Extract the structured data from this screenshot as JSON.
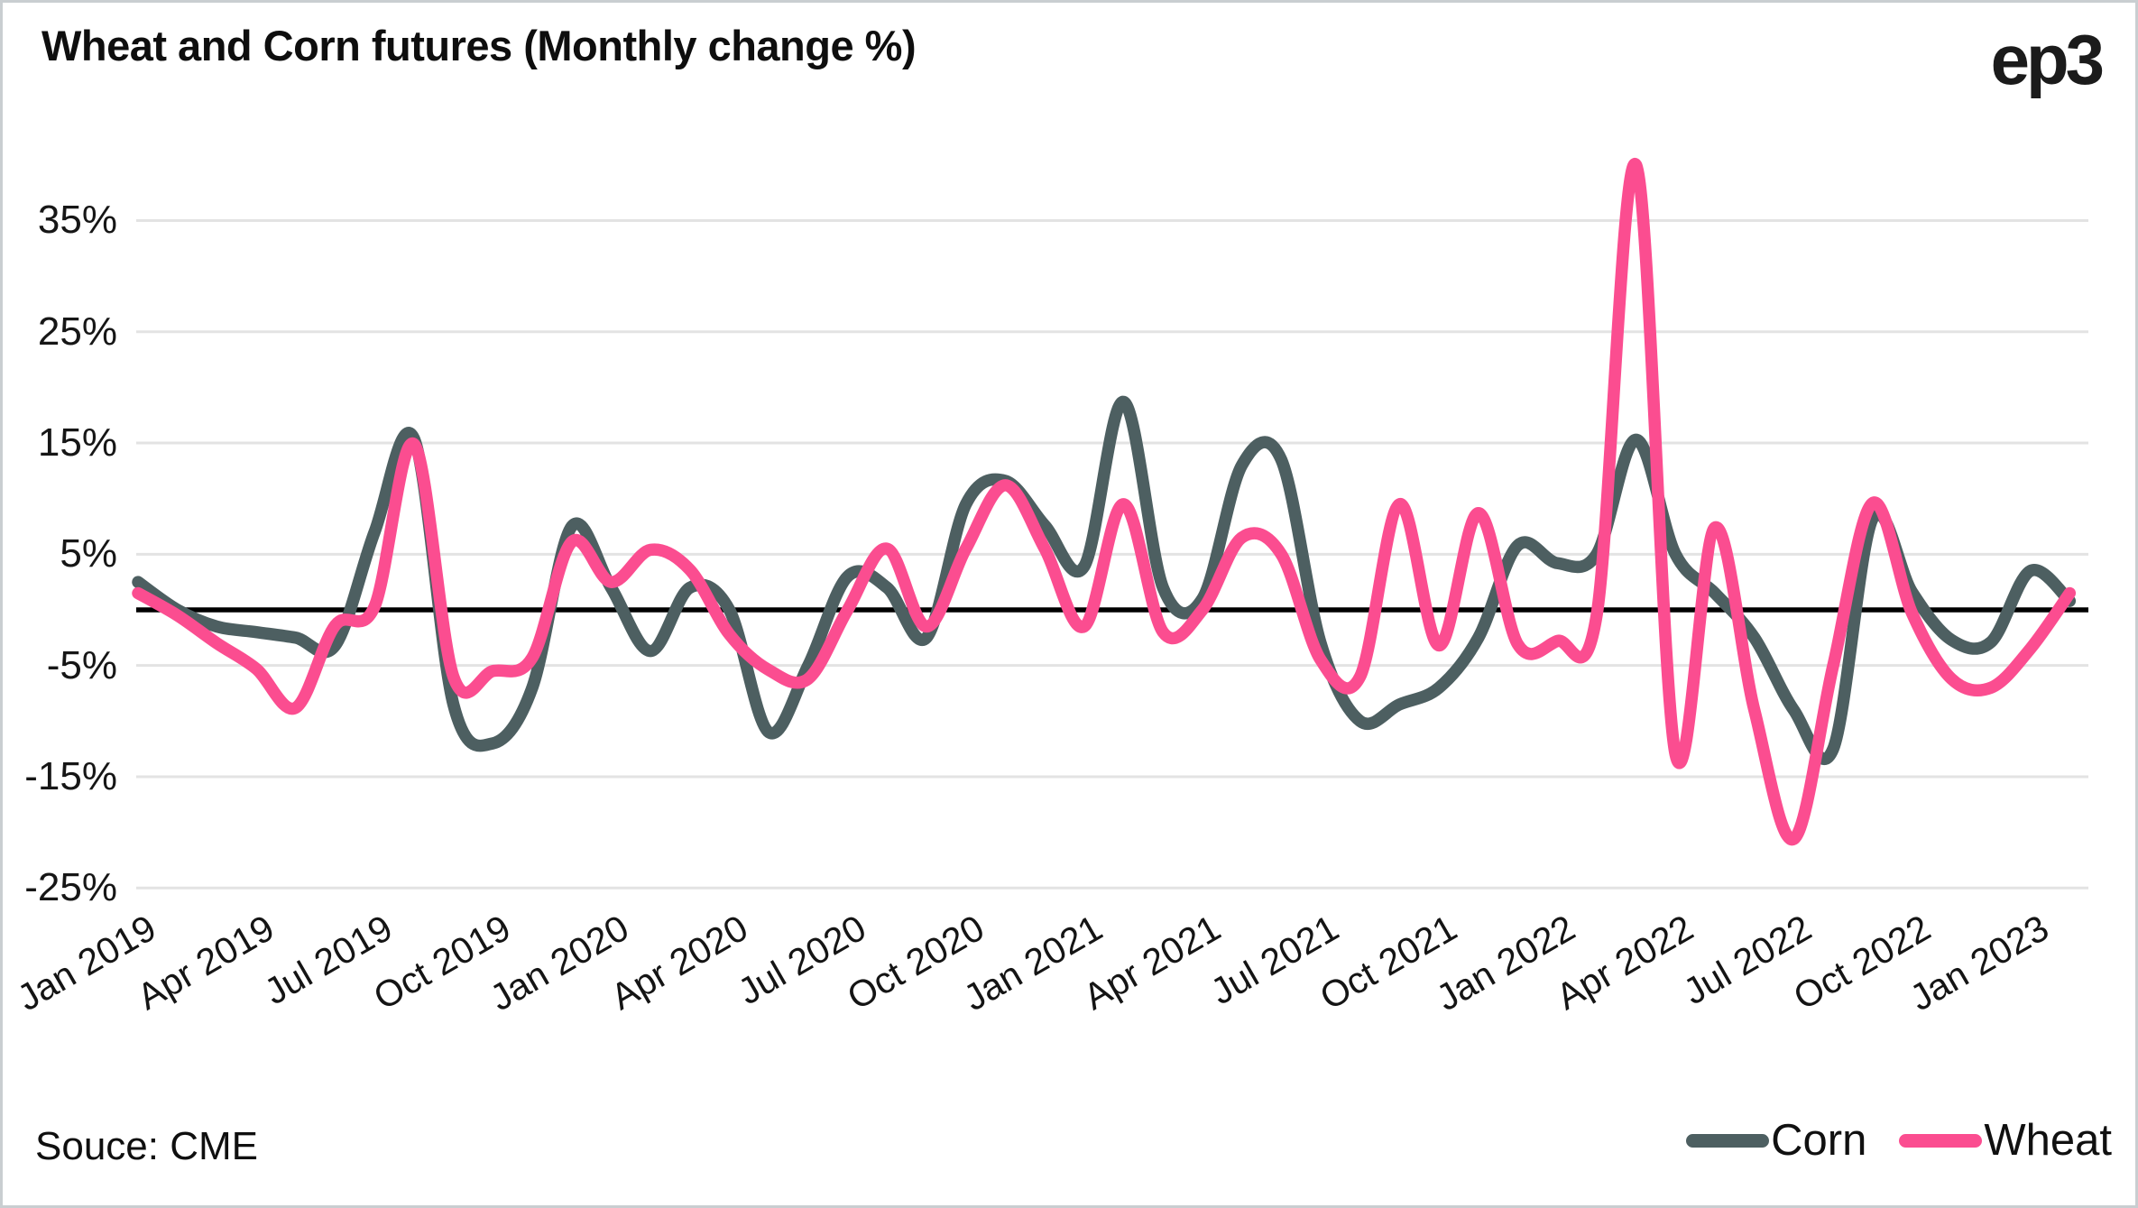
{
  "header": {
    "title": "Wheat and Corn futures (Monthly change %)",
    "logo": "ep3"
  },
  "footer": {
    "source": "Souce: CME"
  },
  "chart_data": {
    "type": "line",
    "title": "Wheat and Corn futures (Monthly change %)",
    "xlabel": "",
    "ylabel": "Monthly change %",
    "grid": true,
    "zero_line": true,
    "legend_position": "bottom-right",
    "ylim": [
      -28,
      43
    ],
    "y_ticks": [
      "35%",
      "25%",
      "15%",
      "5%",
      "-5%",
      "-15%",
      "-25%"
    ],
    "y_tick_values": [
      35,
      25,
      15,
      5,
      -5,
      -15,
      -25
    ],
    "x_tick_labels": [
      "Jan 2019",
      "Apr 2019",
      "Jul 2019",
      "Oct 2019",
      "Jan 2020",
      "Apr 2020",
      "Jul 2020",
      "Oct 2020",
      "Jan 2021",
      "Apr 2021",
      "Jul 2021",
      "Oct 2021",
      "Jan 2022",
      "Apr 2022",
      "Jul 2022",
      "Oct 2022",
      "Jan 2023"
    ],
    "x": [
      "Jan 2019",
      "Feb 2019",
      "Mar 2019",
      "Apr 2019",
      "May 2019",
      "Jun 2019",
      "Jul 2019",
      "Aug 2019",
      "Sep 2019",
      "Oct 2019",
      "Nov 2019",
      "Dec 2019",
      "Jan 2020",
      "Feb 2020",
      "Mar 2020",
      "Apr 2020",
      "May 2020",
      "Jun 2020",
      "Jul 2020",
      "Aug 2020",
      "Sep 2020",
      "Oct 2020",
      "Nov 2020",
      "Dec 2020",
      "Jan 2021",
      "Feb 2021",
      "Mar 2021",
      "Apr 2021",
      "May 2021",
      "Jun 2021",
      "Jul 2021",
      "Aug 2021",
      "Sep 2021",
      "Oct 2021",
      "Nov 2021",
      "Dec 2021",
      "Jan 2022",
      "Feb 2022",
      "Mar 2022",
      "Apr 2022",
      "May 2022",
      "Jun 2022",
      "Jul 2022",
      "Aug 2022",
      "Sep 2022",
      "Oct 2022",
      "Nov 2022",
      "Dec 2022",
      "Jan 2023",
      "Feb 2023"
    ],
    "series": [
      {
        "name": "Corn",
        "color": "#4D5F61",
        "values": [
          2.5,
          0,
          -1.5,
          -2,
          -2.5,
          -3.2,
          7,
          15.4,
          -8.5,
          -12,
          -7,
          7.5,
          2,
          -3.7,
          2,
          0,
          -11,
          -5,
          3,
          2,
          -2.5,
          9.5,
          11.6,
          7.6,
          3.9,
          18.7,
          2,
          1,
          13,
          13.5,
          -3,
          -10,
          -8.5,
          -7,
          -2.5,
          5.8,
          4.2,
          5,
          15.3,
          5,
          1.5,
          -2.5,
          -9,
          -12.5,
          8.2,
          1.6,
          -2.7,
          -2.9,
          3.5,
          0.8
        ]
      },
      {
        "name": "Wheat",
        "color": "#FB4D90",
        "values": [
          1.5,
          -0.5,
          -3,
          -5.3,
          -8.8,
          -1.4,
          0.3,
          14.9,
          -6,
          -5.5,
          -4.3,
          6.1,
          2.5,
          5.4,
          3.6,
          -2.2,
          -5.4,
          -6.2,
          0,
          5.5,
          -1.5,
          5.5,
          11.2,
          5.5,
          -1.5,
          9.5,
          -2,
          0,
          6.5,
          5,
          -4.5,
          -6,
          9.5,
          -3.2,
          8.7,
          -3.1,
          -2.8,
          -0.5,
          40,
          -13,
          7.4,
          -9,
          -20.6,
          -5,
          9.6,
          -0.3,
          -6.2,
          -7,
          -3.5,
          1.5
        ]
      }
    ],
    "style": {
      "grid_color": "#e3e3e3",
      "zero_line_color": "#000000",
      "background": "#ffffff",
      "line_width": 13.5
    }
  }
}
